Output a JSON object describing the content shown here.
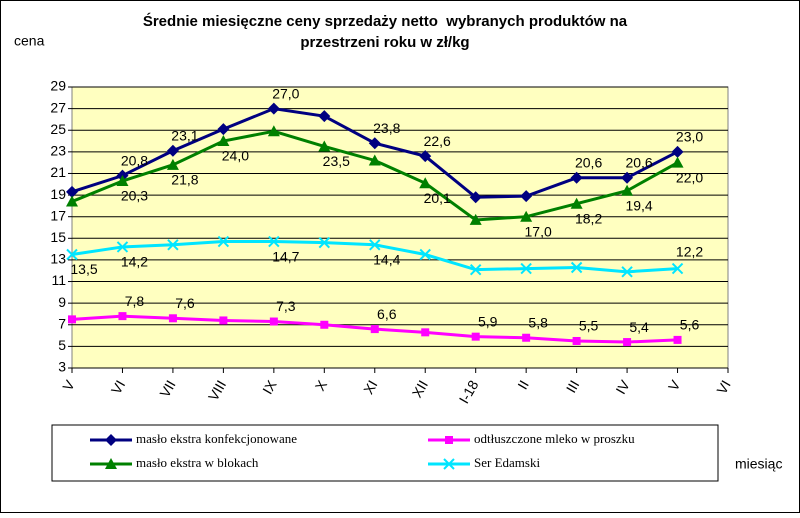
{
  "chart_data": {
    "type": "line",
    "title": [
      "Średnie miesięczne ceny sprzedaży netto  wybranych produktów na",
      "przestrzeni roku w zł/kg"
    ],
    "y_label": "cena",
    "x_label": "miesiąc",
    "categories": [
      "V",
      "VI",
      "VII",
      "VIII",
      "IX",
      "X",
      "XI",
      "XII",
      "I-18",
      "II",
      "III",
      "IV",
      "V",
      "VI"
    ],
    "ylim": [
      3,
      29
    ],
    "yticks": [
      3,
      5,
      7,
      9,
      11,
      13,
      15,
      17,
      19,
      21,
      23,
      25,
      27,
      29
    ],
    "grid": true,
    "series": [
      {
        "name": "masło ekstra konfekcjonowane",
        "color": "#000080",
        "marker": "diamond",
        "values": [
          19.3,
          20.8,
          23.1,
          25.1,
          27.0,
          26.3,
          23.8,
          22.6,
          18.8,
          18.9,
          20.6,
          20.6,
          23.0,
          null
        ],
        "value_labels": [
          null,
          "20,8",
          "23,1",
          null,
          "27,0",
          null,
          "23,8",
          "22,6",
          null,
          null,
          "20,6",
          "20,6",
          "23,0",
          null
        ]
      },
      {
        "name": "odtłuszczone mleko w proszku",
        "color": "#ff00ff",
        "marker": "square",
        "values": [
          7.5,
          7.8,
          7.6,
          7.4,
          7.3,
          7.0,
          6.6,
          6.3,
          5.9,
          5.8,
          5.5,
          5.4,
          5.6,
          null
        ],
        "value_labels": [
          null,
          "7,8",
          "7,6",
          null,
          "7,3",
          null,
          "6,6",
          null,
          "5,9",
          "5,8",
          "5,5",
          "5,4",
          "5,6",
          null
        ]
      },
      {
        "name": "masło ekstra w blokach",
        "color": "#008000",
        "marker": "triangle",
        "values": [
          18.4,
          20.3,
          21.8,
          24.0,
          24.9,
          23.5,
          22.2,
          20.1,
          16.7,
          17.0,
          18.2,
          19.4,
          22.0,
          null
        ],
        "value_labels": [
          null,
          "20,3",
          "21,8",
          "24,0",
          null,
          "23,5",
          null,
          "20,1",
          null,
          "17,0",
          "18,2",
          "19,4",
          "22,0",
          null
        ]
      },
      {
        "name": "Ser Edamski",
        "color": "#00e5ff",
        "marker": "x",
        "values": [
          13.5,
          14.2,
          14.4,
          14.7,
          14.7,
          14.6,
          14.4,
          13.5,
          12.1,
          12.2,
          12.3,
          11.9,
          12.2,
          null
        ],
        "value_labels": [
          "13,5",
          "14,2",
          null,
          null,
          "14,7",
          null,
          "14,4",
          null,
          null,
          null,
          null,
          null,
          "12,2",
          null
        ]
      }
    ]
  }
}
